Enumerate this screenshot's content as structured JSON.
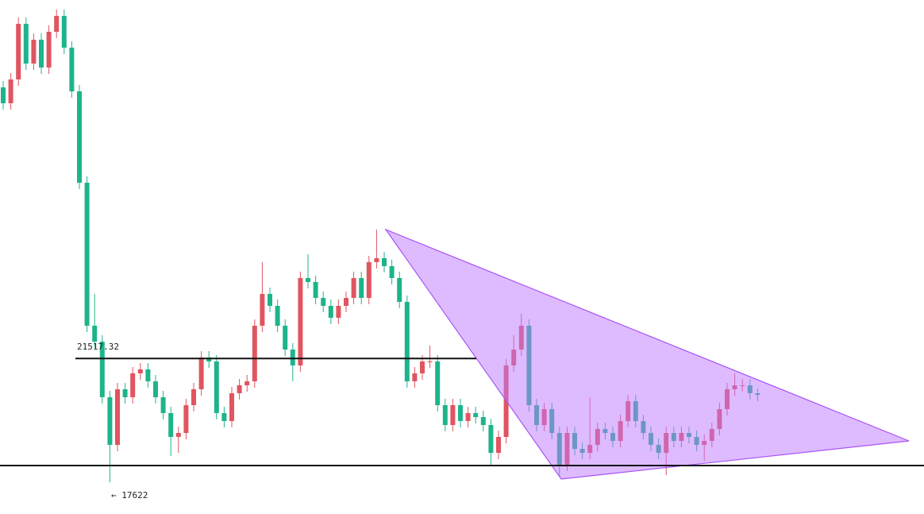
{
  "chart_data": {
    "type": "candlestick",
    "open": [
      30050,
      29550,
      30300,
      32050,
      30800,
      31550,
      30675,
      31800,
      32300,
      31300,
      29925,
      27050,
      22550,
      22050,
      20300,
      18800,
      20550,
      20300,
      21050,
      21175,
      20800,
      20300,
      19800,
      19050,
      19175,
      20050,
      20550,
      21550,
      21425,
      19800,
      19550,
      20425,
      20675,
      20800,
      22550,
      23550,
      23175,
      22550,
      21800,
      21300,
      24050,
      23925,
      23425,
      23175,
      22800,
      23175,
      23425,
      24050,
      23425,
      24550,
      24675,
      24425,
      24050,
      23300,
      20800,
      21050,
      21425,
      21425,
      20050,
      19425,
      20050,
      19550,
      19800,
      19675,
      19425,
      18550,
      19050,
      21300,
      21800,
      22550,
      20050,
      19425,
      19925,
      19175,
      18175,
      19175,
      18675,
      18550,
      18800,
      19300,
      19175,
      18925,
      19550,
      20175,
      19550,
      19175,
      18800,
      18550,
      19175,
      18925,
      19175,
      19050,
      18800,
      18925,
      19300,
      19925,
      20550,
      20675,
      20675,
      20425
    ],
    "high": [
      30250,
      30500,
      32250,
      32250,
      31750,
      31750,
      32000,
      32500,
      32500,
      31500,
      30125,
      27250,
      23550,
      22250,
      20500,
      20750,
      20750,
      21250,
      21375,
      21375,
      21000,
      20500,
      20000,
      19375,
      20250,
      20750,
      21750,
      21750,
      21625,
      20000,
      20625,
      20875,
      21000,
      22750,
      24550,
      23750,
      23375,
      22750,
      22000,
      24250,
      24800,
      24125,
      23625,
      23375,
      23375,
      23625,
      24250,
      24250,
      24750,
      25575,
      24875,
      24625,
      24250,
      23500,
      21250,
      21625,
      21925,
      21625,
      20250,
      20250,
      20250,
      20000,
      20000,
      19875,
      19625,
      19250,
      21500,
      22250,
      22925,
      22750,
      20250,
      20125,
      20125,
      19375,
      19375,
      19375,
      18875,
      20300,
      19500,
      19500,
      19375,
      19750,
      20375,
      20375,
      19750,
      19375,
      19000,
      19375,
      19375,
      19375,
      19375,
      19250,
      19125,
      19500,
      20125,
      20750,
      21050,
      20875,
      20875,
      20575
    ],
    "low": [
      29350,
      29350,
      30100,
      30600,
      30600,
      30475,
      30475,
      31600,
      31100,
      29725,
      26850,
      22350,
      21850,
      20100,
      17622,
      18600,
      20100,
      20100,
      20850,
      20600,
      20100,
      19600,
      18450,
      18550,
      18975,
      19850,
      20350,
      21225,
      19600,
      19350,
      19350,
      20225,
      20475,
      20600,
      22350,
      22975,
      22350,
      21600,
      20800,
      21100,
      23725,
      23225,
      22975,
      22600,
      22600,
      22975,
      23225,
      23225,
      23225,
      24350,
      24225,
      23850,
      23100,
      20600,
      20600,
      20850,
      21225,
      19850,
      19225,
      19225,
      19350,
      19350,
      19475,
      19225,
      18175,
      18350,
      18850,
      21100,
      21600,
      19850,
      19225,
      19225,
      18975,
      17800,
      17975,
      18475,
      18350,
      18350,
      18600,
      18975,
      18725,
      18725,
      19350,
      19350,
      18975,
      18600,
      18350,
      17850,
      18725,
      18725,
      18850,
      18600,
      18300,
      18725,
      19100,
      19725,
      20350,
      20475,
      20225,
      20175
    ],
    "close": [
      29550,
      30300,
      32050,
      30800,
      31550,
      30675,
      31800,
      32300,
      31300,
      29925,
      27050,
      22550,
      22050,
      20300,
      18800,
      20550,
      20300,
      21050,
      21175,
      20800,
      20300,
      19800,
      19050,
      19175,
      20050,
      20550,
      21550,
      21425,
      19800,
      19550,
      20425,
      20675,
      20800,
      22550,
      23550,
      23175,
      22550,
      21800,
      21300,
      24050,
      23925,
      23425,
      23175,
      22800,
      23175,
      23425,
      24050,
      23425,
      24550,
      24675,
      24425,
      24050,
      23300,
      20800,
      21050,
      21425,
      21425,
      20050,
      19425,
      20050,
      19550,
      19800,
      19675,
      19425,
      18550,
      19050,
      21300,
      21800,
      22550,
      20050,
      19425,
      19925,
      19175,
      18175,
      19175,
      18675,
      18550,
      18800,
      19300,
      19175,
      18925,
      19550,
      20175,
      19550,
      19175,
      18800,
      18550,
      19175,
      18925,
      19175,
      19050,
      18800,
      18925,
      19300,
      19925,
      20550,
      20675,
      20675,
      20425,
      20375
    ],
    "ylim": [
      16625,
      32800
    ],
    "up_color": "#e0555f",
    "down_color": "#1db48c",
    "resistance": 21517.32,
    "support": 18150,
    "low_marker": {
      "value": 17622,
      "label": "← 17622"
    }
  }
}
